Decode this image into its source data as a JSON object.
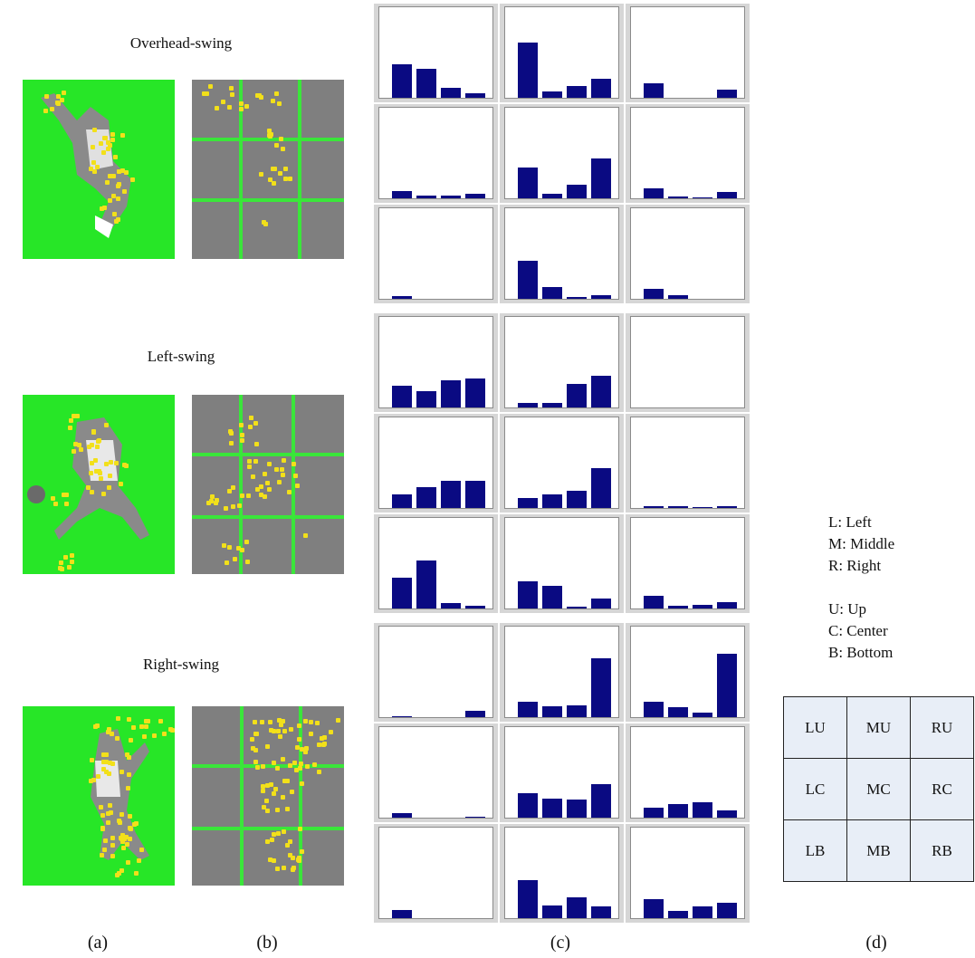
{
  "rows": [
    {
      "title": "Overhead-swing",
      "histograms": [
        [
          0.35,
          0.3,
          0.1,
          0.05
        ],
        [
          0.58,
          0.07,
          0.12,
          0.2
        ],
        [
          0.15,
          0.0,
          0.0,
          0.09
        ],
        [
          0.08,
          0.03,
          0.03,
          0.05
        ],
        [
          0.32,
          0.05,
          0.14,
          0.42
        ],
        [
          0.1,
          0.02,
          0.01,
          0.07
        ],
        [
          0.03,
          0.0,
          0.0,
          0.0
        ],
        [
          0.4,
          0.12,
          0.02,
          0.04
        ],
        [
          0.1,
          0.04,
          0.0,
          0.0
        ]
      ]
    },
    {
      "title": "Left-swing",
      "histograms": [
        [
          0.23,
          0.17,
          0.28,
          0.3
        ],
        [
          0.05,
          0.05,
          0.25,
          0.33
        ],
        [
          0.0,
          0.0,
          0.0,
          0.0
        ],
        [
          0.14,
          0.22,
          0.28,
          0.28
        ],
        [
          0.1,
          0.14,
          0.18,
          0.42
        ],
        [
          0.02,
          0.02,
          0.01,
          0.02
        ],
        [
          0.32,
          0.5,
          0.06,
          0.03
        ],
        [
          0.28,
          0.24,
          0.02,
          0.1
        ],
        [
          0.13,
          0.03,
          0.04,
          0.07
        ]
      ]
    },
    {
      "title": "Right-swing",
      "histograms": [
        [
          0.01,
          0.0,
          0.0,
          0.07
        ],
        [
          0.16,
          0.11,
          0.12,
          0.62
        ],
        [
          0.16,
          0.1,
          0.05,
          0.66
        ],
        [
          0.05,
          0.0,
          0.0,
          0.01
        ],
        [
          0.26,
          0.2,
          0.19,
          0.35
        ],
        [
          0.1,
          0.14,
          0.16,
          0.08
        ],
        [
          0.09,
          0.0,
          0.0,
          0.0
        ],
        [
          0.4,
          0.13,
          0.22,
          0.12
        ],
        [
          0.2,
          0.08,
          0.12,
          0.16
        ]
      ]
    }
  ],
  "legend": {
    "lines": [
      "L: Left",
      "M: Middle",
      "R: Right",
      "",
      "U: Up",
      "C: Center",
      "B: Bottom"
    ]
  },
  "region_table": [
    [
      "LU",
      "MU",
      "RU"
    ],
    [
      "LC",
      "MC",
      "RC"
    ],
    [
      "LB",
      "MB",
      "RB"
    ]
  ],
  "captions": [
    "(a)",
    "(b)",
    "(c)",
    "(d)"
  ],
  "colors": {
    "background_a": "#27e627",
    "background_b": "#7f7f7f",
    "grid_lines": "#3ae63a",
    "feature_points": "#f2e01a",
    "bars": "#0a0a82",
    "table_cells": "#e8eef7"
  }
}
